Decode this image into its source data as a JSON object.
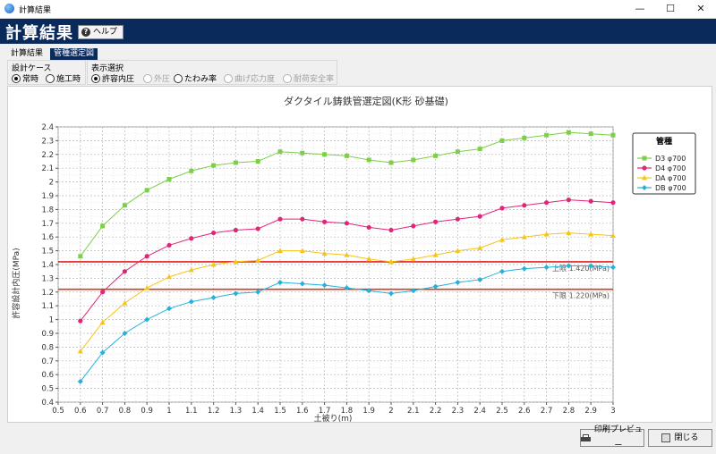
{
  "window": {
    "title": "計算結果",
    "minimize": "—",
    "maximize": "☐",
    "close": "✕"
  },
  "header": {
    "title": "計算結果",
    "help_label": "ヘルプ"
  },
  "tabs": [
    {
      "label": "計算結果",
      "active": false
    },
    {
      "label": "管種選定図",
      "active": true
    }
  ],
  "design_case": {
    "label": "設計ケース",
    "options": [
      {
        "label": "常時",
        "selected": true
      },
      {
        "label": "施工時",
        "selected": false
      }
    ]
  },
  "display_select": {
    "label": "表示選択",
    "options": [
      {
        "label": "許容内圧",
        "selected": true,
        "enabled": true
      },
      {
        "label": "外圧",
        "selected": false,
        "enabled": false
      },
      {
        "label": "たわみ率",
        "selected": false,
        "enabled": true
      },
      {
        "label": "曲げ応力度",
        "selected": false,
        "enabled": false
      },
      {
        "label": "耐荷安全率",
        "selected": false,
        "enabled": false
      }
    ]
  },
  "footer": {
    "print_preview": "印刷プレビュー",
    "close": "閉じる"
  },
  "chart_data": {
    "type": "line",
    "title": "ダクタイル鋳鉄管選定図(K形 砂基礎)",
    "xlabel": "土被り(m)",
    "ylabel": "許容設計内圧(MPa)",
    "xlim": [
      0.5,
      3
    ],
    "ylim": [
      0.4,
      2.4
    ],
    "xticks": [
      "0.5",
      "0.6",
      "0.7",
      "0.8",
      "0.9",
      "1",
      "1.1",
      "1.2",
      "1.3",
      "1.4",
      "1.5",
      "1.6",
      "1.7",
      "1.8",
      "1.9",
      "2",
      "2.1",
      "2.2",
      "2.3",
      "2.4",
      "2.5",
      "2.6",
      "2.7",
      "2.8",
      "2.9",
      "3"
    ],
    "yticks": [
      "0.4",
      "0.5",
      "0.6",
      "0.7",
      "0.8",
      "0.9",
      "1",
      "1.1",
      "1.2",
      "1.3",
      "1.4",
      "1.5",
      "1.6",
      "1.7",
      "1.8",
      "1.9",
      "2",
      "2.1",
      "2.2",
      "2.3",
      "2.4"
    ],
    "grid": true,
    "legend_title": "管種",
    "legend_position": "right",
    "x": [
      0.6,
      0.7,
      0.8,
      0.9,
      1.0,
      1.1,
      1.2,
      1.3,
      1.4,
      1.5,
      1.6,
      1.7,
      1.8,
      1.9,
      2.0,
      2.1,
      2.2,
      2.3,
      2.4,
      2.5,
      2.6,
      2.7,
      2.8,
      2.9,
      3.0
    ],
    "series": [
      {
        "name": "D3 φ700",
        "color": "#7dcf4a",
        "marker": "square",
        "values": [
          1.46,
          1.68,
          1.83,
          1.94,
          2.02,
          2.08,
          2.12,
          2.14,
          2.15,
          2.22,
          2.21,
          2.2,
          2.19,
          2.16,
          2.14,
          2.16,
          2.19,
          2.22,
          2.24,
          2.3,
          2.32,
          2.34,
          2.36,
          2.35,
          2.34
        ]
      },
      {
        "name": "D4 φ700",
        "color": "#e0257a",
        "marker": "circle",
        "values": [
          0.99,
          1.2,
          1.35,
          1.46,
          1.54,
          1.59,
          1.63,
          1.65,
          1.66,
          1.73,
          1.73,
          1.71,
          1.7,
          1.67,
          1.65,
          1.68,
          1.71,
          1.73,
          1.75,
          1.81,
          1.83,
          1.85,
          1.87,
          1.86,
          1.85
        ]
      },
      {
        "name": "DA φ700",
        "color": "#f5c518",
        "marker": "triangle",
        "values": [
          0.77,
          0.98,
          1.12,
          1.23,
          1.31,
          1.36,
          1.4,
          1.42,
          1.43,
          1.5,
          1.5,
          1.48,
          1.47,
          1.44,
          1.42,
          1.44,
          1.47,
          1.5,
          1.52,
          1.58,
          1.6,
          1.62,
          1.63,
          1.62,
          1.61
        ]
      },
      {
        "name": "DB φ700",
        "color": "#25b1d9",
        "marker": "diamond",
        "values": [
          0.55,
          0.76,
          0.9,
          1.0,
          1.08,
          1.13,
          1.16,
          1.19,
          1.2,
          1.27,
          1.26,
          1.25,
          1.23,
          1.21,
          1.19,
          1.21,
          1.24,
          1.27,
          1.29,
          1.35,
          1.37,
          1.38,
          1.39,
          1.39,
          1.38
        ]
      }
    ],
    "limits": [
      {
        "label": "上限 1.420(MPa)",
        "value": 1.42,
        "color": "#e02020"
      },
      {
        "label": "下限 1.220(MPa)",
        "value": 1.22,
        "color": "#d83a1a"
      }
    ]
  }
}
